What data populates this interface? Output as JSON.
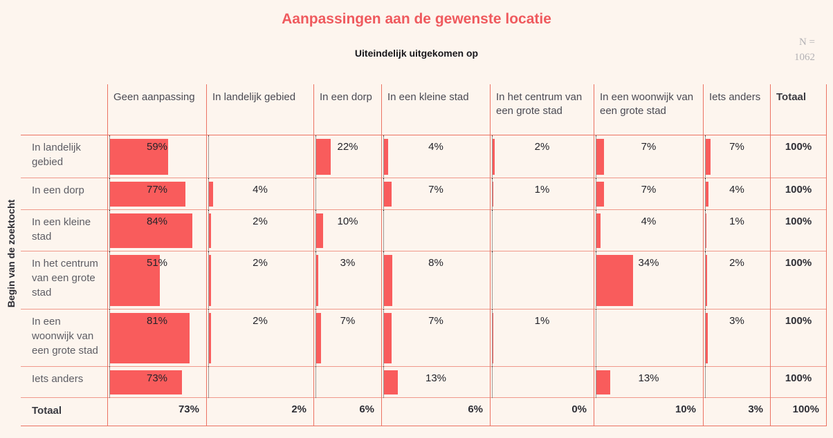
{
  "title": "Aanpassingen aan de gewenste locatie",
  "column_axis_title": "Uiteindelijk uitgekomen op",
  "row_axis_title": "Begin van de zoektocht",
  "sample": {
    "label": "N =",
    "value": "1062"
  },
  "colors": {
    "background": "#fdf5ee",
    "bar": "#f95c5c",
    "title": "#ef5a5e",
    "grid": "#ec7262",
    "row_line": "#f0988a"
  },
  "chart_data": {
    "type": "table",
    "title": "Aanpassingen aan de gewenste locatie",
    "column_axis": "Uiteindelijk uitgekomen op",
    "row_axis": "Begin van de zoektocht",
    "sample_size": 1062,
    "value_unit": "%",
    "legend": "cells show row percentages with proportional bars",
    "columns": [
      "Geen aanpassing",
      "In landelijk gebied",
      "In een dorp",
      "In een kleine stad",
      "In het centrum van een grote stad",
      "In een woonwijk van een grote stad",
      "Iets anders",
      "Totaal"
    ],
    "rows": [
      {
        "label": "In landelijk gebied",
        "values": [
          59,
          null,
          22,
          4,
          2,
          7,
          7
        ],
        "total": 100
      },
      {
        "label": "In een dorp",
        "values": [
          77,
          4,
          null,
          7,
          1,
          7,
          4
        ],
        "total": 100
      },
      {
        "label": "In een kleine stad",
        "values": [
          84,
          2,
          10,
          null,
          null,
          4,
          1
        ],
        "total": 100
      },
      {
        "label": "In het centrum van een grote stad",
        "values": [
          51,
          2,
          3,
          8,
          null,
          34,
          2
        ],
        "total": 100
      },
      {
        "label": "In een woonwijk van een grote stad",
        "values": [
          81,
          2,
          7,
          7,
          1,
          null,
          3
        ],
        "total": 100
      },
      {
        "label": "Iets anders",
        "values": [
          73,
          null,
          null,
          13,
          null,
          13,
          null
        ],
        "total": 100
      }
    ],
    "totals": {
      "label": "Totaal",
      "values": [
        73,
        2,
        6,
        6,
        0,
        10,
        3
      ],
      "total": 100
    }
  }
}
